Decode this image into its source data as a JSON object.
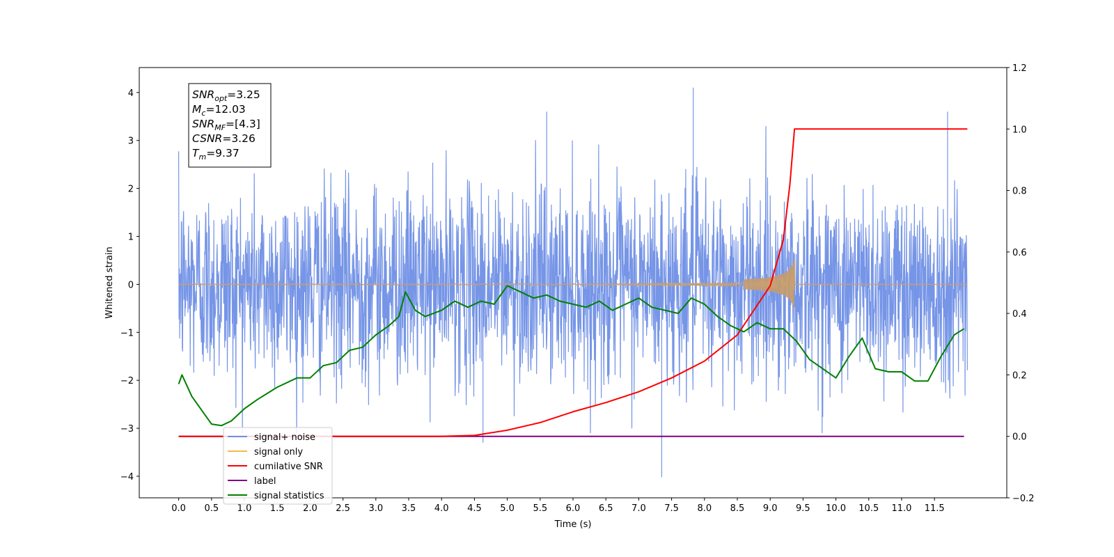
{
  "chart_data": {
    "type": "line",
    "title": "",
    "xlabel": "Time (s)",
    "ylabel": "Whitened strain",
    "y2label": "",
    "xlim": [
      -0.6,
      12.6
    ],
    "ylim": [
      -4.45,
      4.52
    ],
    "y2lim": [
      -0.2,
      1.2
    ],
    "x_ticks": [
      0.0,
      0.5,
      1.0,
      1.5,
      2.0,
      2.5,
      3.0,
      3.5,
      4.0,
      4.5,
      5.0,
      5.5,
      6.0,
      6.5,
      7.0,
      7.5,
      8.0,
      8.5,
      9.0,
      9.5,
      10.0,
      10.5,
      11.0,
      11.5
    ],
    "x_tick_labels": [
      "0.0",
      "0.5",
      "1.0",
      "1.5",
      "2.0",
      "2.5",
      "3.0",
      "3.5",
      "4.0",
      "4.5",
      "5.0",
      "5.5",
      "6.0",
      "6.5",
      "7.0",
      "7.5",
      "8.0",
      "8.5",
      "9.0",
      "9.5",
      "10.0",
      "10.5",
      "11.0",
      "11.5"
    ],
    "y_ticks": [
      -4,
      -3,
      -2,
      -1,
      0,
      1,
      2,
      3,
      4
    ],
    "y_tick_labels": [
      "−4",
      "−3",
      "−2",
      "−1",
      "0",
      "1",
      "2",
      "3",
      "4"
    ],
    "y2_ticks": [
      -0.2,
      0.0,
      0.2,
      0.4,
      0.6,
      0.8,
      1.0,
      1.2
    ],
    "y2_tick_labels": [
      "−0.2",
      "0.0",
      "0.2",
      "0.4",
      "0.6",
      "0.8",
      "1.0",
      "1.2"
    ],
    "grid": false,
    "legend_position": "bottom-left",
    "colors": {
      "signal_noise": "#6f8fe6",
      "signal_only": "#f5b94a",
      "cumulative_snr": "#ff0000",
      "label": "#800080",
      "signal_statistics": "#008000"
    },
    "annotation_box": {
      "lines": [
        {
          "symbol": "SNR",
          "sub": "opt",
          "value": "=3.25"
        },
        {
          "symbol": "M",
          "sub": "c",
          "value": "=12.03"
        },
        {
          "symbol": "SNR",
          "sub": "MF",
          "value": "=[4.3]"
        },
        {
          "symbol": "CSNR",
          "sub": "",
          "value": "=3.26"
        },
        {
          "symbol": "T",
          "sub": "m",
          "value": "=9.37"
        }
      ]
    },
    "series": [
      {
        "name": "signal+ noise",
        "axis": "left",
        "description_kind": "noise",
        "x_range": [
          0.0,
          12.0
        ],
        "mean": 0.0,
        "std": 1.0,
        "extremes": [
          [
            7.83,
            4.1
          ],
          [
            7.35,
            -4.02
          ],
          [
            11.7,
            3.6
          ],
          [
            5.6,
            3.6
          ],
          [
            4.63,
            -3.3
          ]
        ]
      },
      {
        "name": "signal only",
        "axis": "left",
        "chirp": {
          "start": 0.0,
          "merger": 9.37,
          "end": 12.0,
          "peak_amplitude": 0.55
        }
      },
      {
        "name": "cumilative SNR",
        "axis": "right",
        "x": [
          0.0,
          4.0,
          4.5,
          5.0,
          5.5,
          6.0,
          6.5,
          7.0,
          7.5,
          8.0,
          8.5,
          9.0,
          9.2,
          9.3,
          9.37,
          12.0
        ],
        "y": [
          0.0,
          0.0,
          0.003,
          0.02,
          0.045,
          0.08,
          0.11,
          0.145,
          0.19,
          0.245,
          0.33,
          0.49,
          0.64,
          0.82,
          1.0,
          1.0
        ]
      },
      {
        "name": "label",
        "axis": "right",
        "x": [
          0.0,
          11.95
        ],
        "y": [
          0.0,
          0.0
        ]
      },
      {
        "name": "signal statistics",
        "axis": "right",
        "x": [
          0.0,
          0.05,
          0.2,
          0.4,
          0.5,
          0.65,
          0.8,
          1.0,
          1.2,
          1.5,
          1.8,
          2.0,
          2.2,
          2.4,
          2.6,
          2.8,
          3.0,
          3.2,
          3.35,
          3.45,
          3.6,
          3.75,
          4.0,
          4.2,
          4.4,
          4.6,
          4.8,
          5.0,
          5.2,
          5.4,
          5.6,
          5.8,
          6.0,
          6.2,
          6.4,
          6.6,
          6.8,
          7.0,
          7.2,
          7.4,
          7.6,
          7.8,
          8.0,
          8.2,
          8.4,
          8.6,
          8.8,
          9.0,
          9.2,
          9.4,
          9.6,
          9.8,
          10.0,
          10.2,
          10.4,
          10.6,
          10.8,
          11.0,
          11.2,
          11.4,
          11.6,
          11.8,
          11.95
        ],
        "y": [
          0.17,
          0.2,
          0.13,
          0.07,
          0.04,
          0.035,
          0.05,
          0.09,
          0.12,
          0.16,
          0.19,
          0.19,
          0.23,
          0.24,
          0.28,
          0.29,
          0.33,
          0.36,
          0.39,
          0.47,
          0.41,
          0.39,
          0.41,
          0.44,
          0.42,
          0.44,
          0.43,
          0.49,
          0.47,
          0.45,
          0.46,
          0.44,
          0.43,
          0.42,
          0.44,
          0.41,
          0.43,
          0.45,
          0.42,
          0.41,
          0.4,
          0.45,
          0.43,
          0.39,
          0.36,
          0.34,
          0.37,
          0.35,
          0.35,
          0.31,
          0.25,
          0.22,
          0.19,
          0.26,
          0.32,
          0.22,
          0.21,
          0.21,
          0.18,
          0.18,
          0.26,
          0.33,
          0.35
        ]
      }
    ]
  }
}
